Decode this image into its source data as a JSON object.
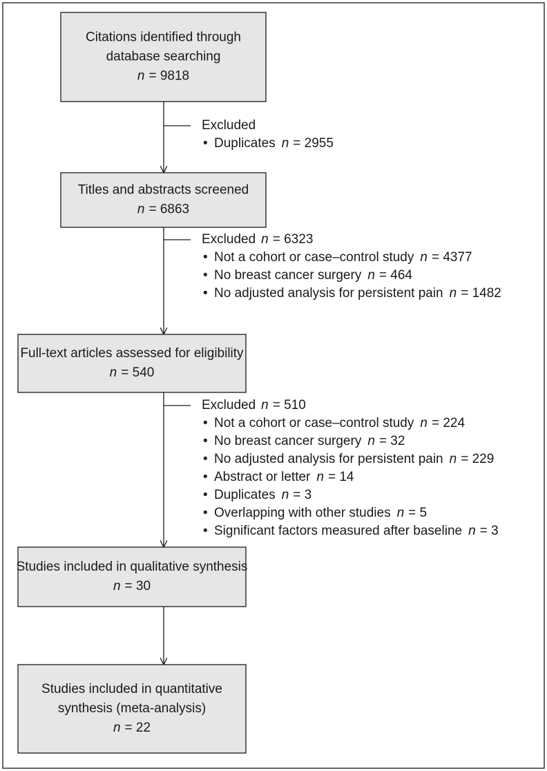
{
  "bullet": "•",
  "nodes": [
    {
      "lines": [
        "Citations identified through",
        "database searching"
      ],
      "count": {
        "var": "n",
        "eq": "= 9818"
      }
    },
    {
      "lines": [
        "Titles and abstracts screened"
      ],
      "count": {
        "var": "n",
        "eq": "= 6863"
      }
    },
    {
      "lines": [
        "Full-text articles assessed for eligibility"
      ],
      "count": {
        "var": "n",
        "eq": "= 540"
      }
    },
    {
      "lines": [
        "Studies included in qualitative synthesis"
      ],
      "count": {
        "var": "n",
        "eq": "= 30"
      }
    },
    {
      "lines": [
        "Studies included in quantitative",
        "synthesis (meta-analysis)"
      ],
      "count": {
        "var": "n",
        "eq": "= 22"
      }
    }
  ],
  "exclusions": [
    {
      "heading": "Excluded",
      "items": [
        {
          "text": "Duplicates",
          "count": {
            "var": "n",
            "eq": "= 2955"
          }
        }
      ]
    },
    {
      "heading": "Excluded",
      "count": {
        "var": "n",
        "eq": "= 6323"
      },
      "items": [
        {
          "text": "Not a cohort or case–control study",
          "count": {
            "var": "n",
            "eq": "= 4377"
          }
        },
        {
          "text": "No breast cancer surgery",
          "count": {
            "var": "n",
            "eq": "= 464"
          }
        },
        {
          "text": "No adjusted analysis for persistent pain",
          "count": {
            "var": "n",
            "eq": "= 1482"
          }
        }
      ]
    },
    {
      "heading": "Excluded",
      "count": {
        "var": "n",
        "eq": "= 510"
      },
      "items": [
        {
          "text": "Not a cohort or case–control study",
          "count": {
            "var": "n",
            "eq": "= 224"
          }
        },
        {
          "text": "No breast cancer surgery",
          "count": {
            "var": "n",
            "eq": "= 32"
          }
        },
        {
          "text": "No adjusted analysis for persistent pain",
          "count": {
            "var": "n",
            "eq": "= 229"
          }
        },
        {
          "text": "Abstract or letter",
          "count": {
            "var": "n",
            "eq": "= 14"
          }
        },
        {
          "text": "Duplicates",
          "count": {
            "var": "n",
            "eq": "= 3"
          }
        },
        {
          "text": "Overlapping with other studies",
          "count": {
            "var": "n",
            "eq": "= 5"
          }
        },
        {
          "text": "Significant factors measured after baseline",
          "count": {
            "var": "n",
            "eq": "= 3"
          }
        }
      ]
    }
  ]
}
